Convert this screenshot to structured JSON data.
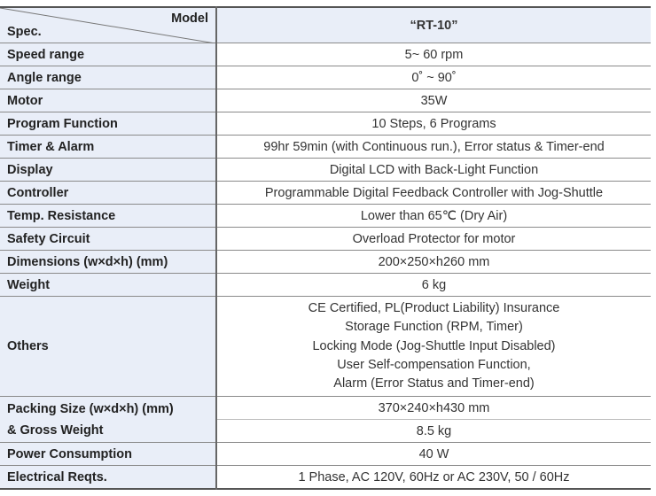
{
  "header": {
    "spec_label": "Spec.",
    "model_label": "Model",
    "model": "“RT-10”"
  },
  "rows": [
    {
      "label": "Speed range",
      "value": "5~ 60 rpm"
    },
    {
      "label": "Angle range",
      "value": "0˚ ~ 90˚"
    },
    {
      "label": "Motor",
      "value": "35W"
    },
    {
      "label": "Program Function",
      "value": "10 Steps, 6 Programs"
    },
    {
      "label": "Timer & Alarm",
      "value": "99hr 59min (with Continuous run.), Error status & Timer-end"
    },
    {
      "label": "Display",
      "value": "Digital LCD with Back-Light Function"
    },
    {
      "label": "Controller",
      "value": "Programmable Digital Feedback Controller with Jog-Shuttle"
    },
    {
      "label": "Temp. Resistance",
      "value": "Lower than 65℃ (Dry Air)"
    },
    {
      "label": "Safety Circuit",
      "value": "Overload Protector for motor"
    },
    {
      "label": "Dimensions (w×d×h) (mm)",
      "value": "200×250×h260 mm"
    },
    {
      "label": "Weight",
      "value": "6 kg"
    }
  ],
  "others": {
    "label": "Others",
    "lines": [
      "CE Certified, PL(Product Liability) Insurance",
      "Storage Function (RPM, Timer)",
      "Locking Mode (Jog-Shuttle Input Disabled)",
      "User Self-compensation Function,",
      "Alarm (Error Status and Timer-end)"
    ]
  },
  "packing": {
    "label_line1": "Packing Size (w×d×h) (mm)",
    "label_line2": "& Gross Weight",
    "size": "370×240×h430 mm",
    "weight": "8.5 kg"
  },
  "power": {
    "label": "Power Consumption",
    "value": "40 W"
  },
  "electrical": {
    "label": "Electrical Reqts.",
    "value": "1 Phase, AC 120V, 60Hz or AC 230V, 50 / 60Hz"
  }
}
